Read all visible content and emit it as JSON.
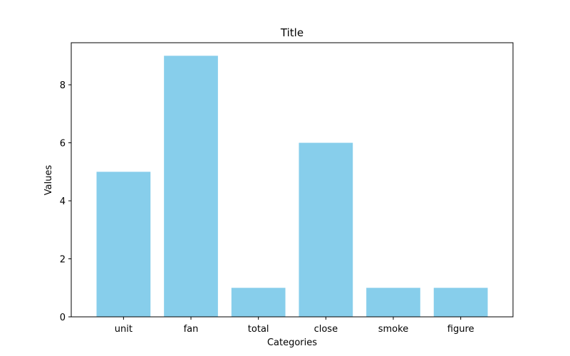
{
  "chart_data": {
    "type": "bar",
    "title": "Title",
    "xlabel": "Categories",
    "ylabel": "Values",
    "categories": [
      "unit",
      "fan",
      "total",
      "close",
      "smoke",
      "figure"
    ],
    "values": [
      5,
      9,
      1,
      6,
      1,
      1
    ],
    "ylim": [
      0,
      9.45
    ],
    "yticks": [
      0,
      2,
      4,
      6,
      8
    ],
    "bar_color": "#87ceeb",
    "grid": false,
    "legend": "none"
  }
}
